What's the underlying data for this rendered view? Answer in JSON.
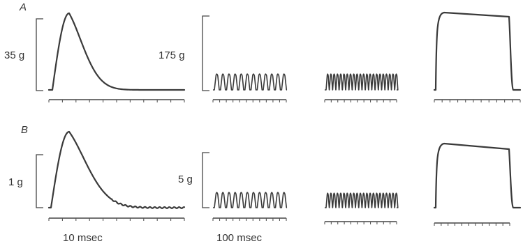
{
  "panels": [
    {
      "label": "A",
      "scale_short": "35 g",
      "scale_long": "175 g",
      "trace_kinds": [
        "twitch",
        "unfused-tetanus",
        "partially-fused-tetanus",
        "fused-tetanus"
      ]
    },
    {
      "label": "B",
      "scale_short": "1 g",
      "scale_long": "5 g",
      "trace_kinds": [
        "twitch",
        "unfused-tetanus",
        "partially-fused-tetanus",
        "fused-tetanus"
      ]
    }
  ],
  "time_scales": {
    "short": "10 msec",
    "long": "100 msec"
  },
  "colors": {
    "trace": "#3a3a3a",
    "text": "#333333",
    "background": "#ffffff"
  }
}
